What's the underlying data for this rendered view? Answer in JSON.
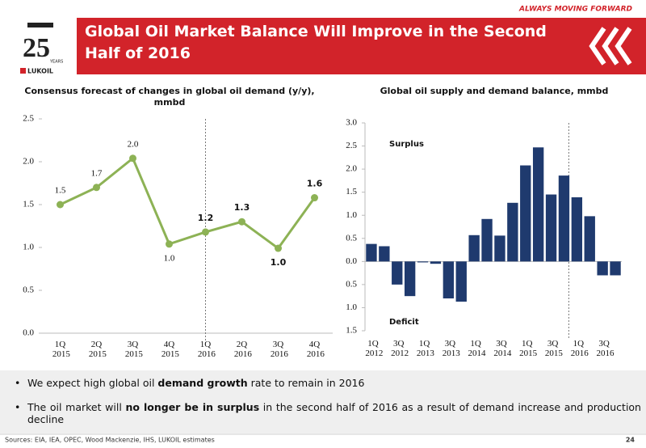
{
  "header": {
    "tagline": "ALWAYS MOVING FORWARD",
    "title": "Global Oil Market Balance Will Improve in the Second Half of 2016",
    "logo_years": "YEARS",
    "logo_brand": "LUKOIL"
  },
  "chart_data": [
    {
      "type": "line",
      "title": "Consensus forecast of changes in global oil demand (y/y), mmbd",
      "categories": [
        "1Q 2015",
        "2Q 2015",
        "3Q 2015",
        "4Q 2015",
        "1Q 2016",
        "2Q 2016",
        "3Q 2016",
        "4Q 2016"
      ],
      "values": [
        1.5,
        1.7,
        2.04,
        1.04,
        1.18,
        1.3,
        0.99,
        1.58
      ],
      "value_labels": [
        "1.5",
        "1.7",
        "2.0",
        "1.0",
        "1.2",
        "1.3",
        "1.0",
        "1.6"
      ],
      "color": "#8db255",
      "ylim": [
        0,
        2.5
      ],
      "yticks": [
        {
          "value": 0,
          "label": "0.0"
        },
        0.5,
        {
          "value": 1,
          "label": "1.0"
        },
        1.5,
        {
          "value": 2,
          "label": "2.0"
        },
        2.5
      ]
    },
    {
      "type": "bar",
      "title": "Global oil supply and demand balance, mmbd",
      "categories": [
        "1Q 2012",
        null,
        "3Q 2012",
        null,
        "1Q 2013",
        null,
        "3Q 2013",
        null,
        "1Q 2014",
        null,
        "3Q 2014",
        null,
        "1Q 2015",
        null,
        "3Q 2015",
        null,
        "1Q 2016",
        null,
        "3Q 2016",
        null
      ],
      "values": [
        0.38,
        0.33,
        -0.5,
        -0.75,
        -0.02,
        -0.05,
        -0.8,
        -0.87,
        0.57,
        0.92,
        0.56,
        1.27,
        2.08,
        2.47,
        1.45,
        1.86,
        1.39,
        0.98,
        -0.3,
        -0.3
      ],
      "color": "#1f3a6e",
      "ylim": [
        -1.5,
        3
      ],
      "yticks": [
        {
          "value": -1.5,
          "label": "1.5"
        },
        {
          "value": -1,
          "label": "1.0"
        },
        {
          "value": -0.5,
          "label": "0.5"
        },
        {
          "value": 0,
          "label": "0.0"
        },
        0.5,
        {
          "value": 1,
          "label": "1.0"
        },
        1.5,
        {
          "value": 2,
          "label": "2.0"
        },
        2.5,
        {
          "value": 3,
          "label": "3.0"
        }
      ],
      "annotations": [
        "Surplus",
        "Deficit"
      ]
    }
  ],
  "bullets": [
    [
      "We expect high global oil ",
      "demand growth",
      " rate to remain in 2016"
    ],
    [
      "The oil market will ",
      "no longer be in surplus",
      " in the second half of 2016 as a result of demand increase and production decline"
    ]
  ],
  "sources": "Sources: EIA, IEA, OPEC, Wood Mackenzie, IHS, LUKOIL estimates",
  "page_number": "24"
}
